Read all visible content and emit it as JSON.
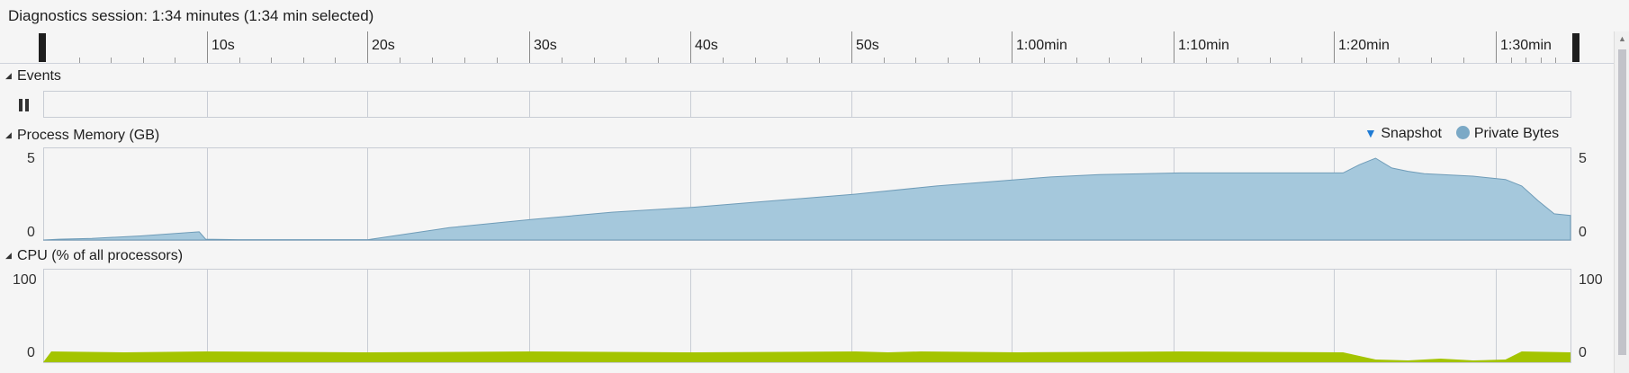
{
  "header": {
    "title": "Diagnostics session: 1:34 minutes (1:34 min selected)"
  },
  "ruler": {
    "ticks": [
      "10s",
      "20s",
      "30s",
      "40s",
      "50s",
      "1:00min",
      "1:10min",
      "1:20min",
      "1:30min"
    ]
  },
  "events": {
    "title": "Events",
    "pause_icon": "pause-icon"
  },
  "memory": {
    "title": "Process Memory (GB)",
    "legend": {
      "snapshot": "Snapshot",
      "private_bytes": "Private Bytes"
    },
    "y_max_label": "5",
    "y_min_label": "0",
    "colors": {
      "fill": "#a5c8dc",
      "stroke": "#6f9cb8",
      "snapshot": "#1f7bd4"
    }
  },
  "cpu": {
    "title": "CPU (% of all processors)",
    "y_max_label": "100",
    "y_min_label": "0",
    "colors": {
      "fill": "#a4c400"
    }
  },
  "chart_data": [
    {
      "type": "area",
      "title": "Process Memory (GB)",
      "series": [
        {
          "name": "Private Bytes",
          "x": [
            0,
            1,
            3,
            6,
            9.6,
            10,
            12,
            15,
            18,
            20,
            25,
            30,
            35,
            40,
            45,
            50,
            55,
            60,
            62,
            65,
            70,
            75,
            80,
            81,
            82,
            83,
            84,
            85,
            88,
            90,
            91,
            92,
            93,
            94
          ],
          "values": [
            0.0,
            0.05,
            0.1,
            0.25,
            0.5,
            0.05,
            0.02,
            0.02,
            0.02,
            0.02,
            0.75,
            1.25,
            1.7,
            2.0,
            2.4,
            2.8,
            3.3,
            3.7,
            3.85,
            4.0,
            4.1,
            4.1,
            4.1,
            4.6,
            5.0,
            4.4,
            4.2,
            4.05,
            3.9,
            3.7,
            3.3,
            2.4,
            1.6,
            1.5
          ]
        }
      ],
      "ylim": [
        0,
        5
      ],
      "xlim": [
        0,
        94
      ]
    },
    {
      "type": "area",
      "title": "CPU (% of all processors)",
      "series": [
        {
          "name": "CPU",
          "x": [
            0,
            0.5,
            5,
            10,
            20,
            30,
            40,
            50,
            52,
            54,
            60,
            70,
            80,
            82,
            84,
            86,
            88,
            90,
            91,
            94
          ],
          "values": [
            0,
            12,
            11,
            12,
            11,
            12,
            11,
            12,
            11,
            12,
            11,
            12,
            11,
            3,
            2,
            4,
            2,
            3,
            12,
            11
          ]
        }
      ],
      "ylim": [
        0,
        100
      ],
      "xlim": [
        0,
        94
      ]
    }
  ]
}
